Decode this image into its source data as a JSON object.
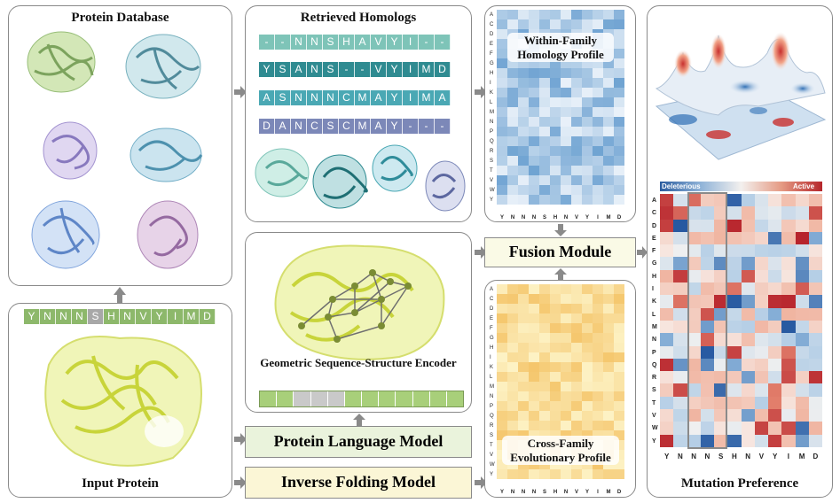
{
  "panels": {
    "protein_database": "Protein Database",
    "input_protein": "Input Protein",
    "retrieved_homologs": "Retrieved Homologs",
    "encoder": "Geometric Sequence-Structure Encoder",
    "within_family": "Within-Family Homology Profile",
    "cross_family": "Cross-Family Evolutionary Profile",
    "mutation_preference": "Mutation Preference"
  },
  "models": {
    "plm": "Protein Language Model",
    "ifm": "Inverse Folding Model",
    "fusion": "Fusion Module"
  },
  "input_sequence": [
    "Y",
    "N",
    "N",
    "N",
    "S",
    "H",
    "N",
    "V",
    "Y",
    "I",
    "M",
    "D"
  ],
  "homologs": [
    [
      "-",
      "-",
      "N",
      "N",
      "S",
      "H",
      "A",
      "V",
      "Y",
      "I",
      "-",
      "-"
    ],
    [
      "Y",
      "S",
      "A",
      "N",
      "S",
      "-",
      "-",
      "V",
      "Y",
      "I",
      "M",
      "D"
    ],
    [
      "A",
      "S",
      "N",
      "N",
      "N",
      "C",
      "M",
      "A",
      "Y",
      "I",
      "M",
      "A"
    ],
    [
      "D",
      "A",
      "N",
      "C",
      "S",
      "C",
      "M",
      "A",
      "Y",
      "-",
      "-",
      "-"
    ]
  ],
  "amino_acids": [
    "A",
    "C",
    "D",
    "E",
    "F",
    "G",
    "H",
    "I",
    "K",
    "L",
    "M",
    "N",
    "P",
    "Q",
    "R",
    "S",
    "T",
    "V",
    "W",
    "Y"
  ],
  "column_labels": [
    "Y",
    "N",
    "N",
    "N",
    "S",
    "H",
    "N",
    "V",
    "Y",
    "I",
    "M",
    "D"
  ],
  "legend": {
    "low": "Deleterious",
    "high": "Active"
  },
  "colors": {
    "seq_green": "#8db86b",
    "seq_gray": "#a8a8a8",
    "homolog_colors": [
      "#7ec4b8",
      "#2f8b91",
      "#4aa8b4",
      "#7c88b8"
    ],
    "plm_bg": "#eaf3dc",
    "ifm_bg": "#fbf6d6",
    "fusion_bg": "#fafae6"
  }
}
